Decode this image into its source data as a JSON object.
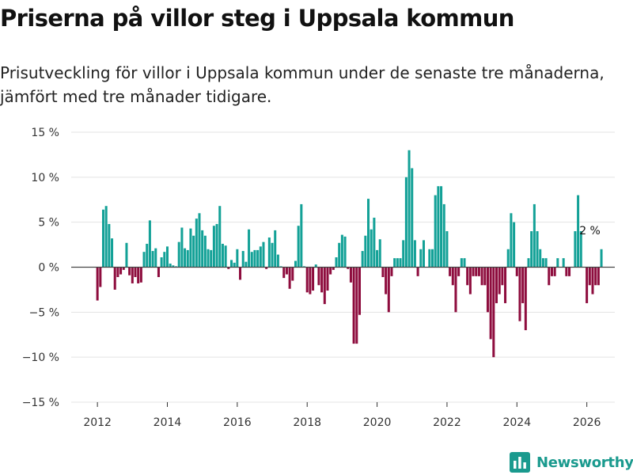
{
  "title": "Priserna på villor steg i Uppsala kommun",
  "subtitle": "Prisutveckling för villor i Uppsala kommun under de senaste tre månaderna, jämfört med tre månader tidigare.",
  "brand": "Newsworthy",
  "colors": {
    "positive": "#13a197",
    "negative": "#8e0d3e",
    "grid": "#e3e3e3",
    "zero": "#444444",
    "brand": "#1a9a8e"
  },
  "chart_data": {
    "type": "bar",
    "title": "Priserna på villor steg i Uppsala kommun",
    "xlabel": "",
    "ylabel": "",
    "x_start": 2012.0,
    "x_step": 0.08333,
    "xlim": [
      2011.25,
      2026.8
    ],
    "ylim": [
      -15,
      15
    ],
    "yticks": [
      15,
      10,
      5,
      0,
      -5,
      -10,
      -15
    ],
    "ytick_labels": [
      "15 %",
      "10 %",
      "5 %",
      "0 %",
      "−5 %",
      "−10 %",
      "−15 %"
    ],
    "xticks": [
      2012,
      2014,
      2016,
      2018,
      2020,
      2022,
      2024,
      2026
    ],
    "xtick_labels": [
      "2012",
      "2014",
      "2016",
      "2018",
      "2020",
      "2022",
      "2024",
      "2026"
    ],
    "annotation": {
      "text": "2 %",
      "x": 2026.08,
      "y": 2
    },
    "values": [
      -3.7,
      -2.2,
      6.4,
      6.8,
      4.8,
      3.2,
      -2.5,
      -1.1,
      -0.8,
      -0.3,
      2.7,
      -0.9,
      -1.8,
      -1.1,
      -1.8,
      -1.7,
      1.7,
      2.6,
      5.2,
      1.8,
      2.1,
      -1.1,
      1.1,
      1.7,
      2.3,
      0.4,
      0.2,
      0.1,
      2.8,
      4.4,
      2.1,
      1.9,
      4.3,
      3.5,
      5.4,
      6.0,
      4.1,
      3.5,
      2.0,
      1.9,
      4.6,
      4.8,
      6.8,
      2.6,
      2.4,
      -0.2,
      0.8,
      0.5,
      2.0,
      -1.4,
      1.8,
      0.6,
      4.2,
      1.7,
      1.9,
      1.9,
      2.3,
      2.8,
      -0.2,
      3.3,
      2.7,
      4.1,
      1.4,
      0.1,
      -1.2,
      -0.8,
      -2.4,
      -1.5,
      0.7,
      4.6,
      7.0,
      0.1,
      -2.8,
      -3.0,
      -2.6,
      0.3,
      -2.0,
      -2.8,
      -4.1,
      -2.6,
      -0.8,
      -0.3,
      1.1,
      2.7,
      3.6,
      3.4,
      -0.2,
      -1.7,
      -8.5,
      -8.5,
      -5.3,
      1.8,
      3.5,
      7.6,
      4.2,
      5.5,
      1.9,
      3.1,
      -1.1,
      -3.0,
      -5.0,
      -1.0,
      1.0,
      1.0,
      1.0,
      3.0,
      10.0,
      13.0,
      11.0,
      3.0,
      -1.0,
      2.0,
      3.0,
      0.0,
      2.0,
      2.0,
      8.0,
      9.0,
      9.0,
      7.0,
      4.0,
      -1.0,
      -2.0,
      -5.0,
      -1.0,
      1.0,
      1.0,
      -2.0,
      -3.0,
      -1.0,
      -1.0,
      -1.0,
      -2.0,
      -2.0,
      -5.0,
      -8.0,
      -10.0,
      -4.0,
      -3.0,
      -2.0,
      -4.0,
      2.0,
      6.0,
      5.0,
      -1.0,
      -6.0,
      -4.0,
      -7.0,
      1.0,
      4.0,
      7.0,
      4.0,
      2.0,
      1.0,
      1.0,
      -2.0,
      -1.0,
      -1.0,
      1.0,
      0.0,
      1.0,
      -1.0,
      -1.0,
      0.0,
      4.0,
      8.0,
      4.0,
      0.0,
      -4.0,
      -2.0,
      -3.0,
      -2.0,
      -2.0,
      2.0
    ]
  }
}
